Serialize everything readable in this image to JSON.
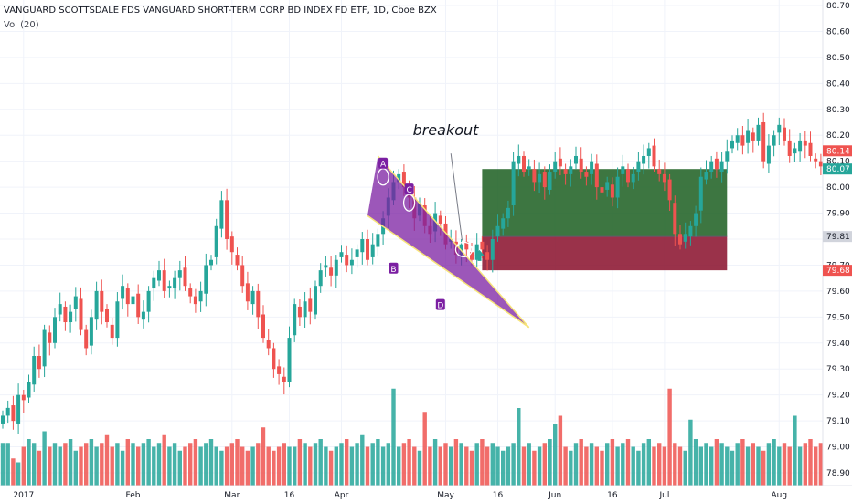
{
  "header": {
    "title": "VANGUARD SCOTTSDALE FDS VANGUARD SHORT-TERM CORP BD INDEX FD ETF, 1D, Cboe BZX",
    "volume_label": "Vol (20)"
  },
  "chart_data": {
    "type": "candlestick",
    "y_ticks": [
      "80.70",
      "80.60",
      "80.50",
      "80.40",
      "80.30",
      "80.20",
      "80.10",
      "80.00",
      "79.90",
      "79.80",
      "79.70",
      "79.60",
      "79.50",
      "79.40",
      "79.30",
      "79.20",
      "79.10",
      "79.00",
      "78.90"
    ],
    "ylim": [
      78.86,
      80.71
    ],
    "x_labels": [
      {
        "label": "2017",
        "bar": 4
      },
      {
        "label": "Feb",
        "bar": 25
      },
      {
        "label": "Mar",
        "bar": 44
      },
      {
        "label": "16",
        "bar": 55
      },
      {
        "label": "Apr",
        "bar": 65
      },
      {
        "label": "May",
        "bar": 85
      },
      {
        "label": "16",
        "bar": 95
      },
      {
        "label": "Jun",
        "bar": 106
      },
      {
        "label": "16",
        "bar": 117
      },
      {
        "label": "Jul",
        "bar": 127
      },
      {
        "label": "Aug",
        "bar": 149
      }
    ],
    "n_bars": 158,
    "closes": [
      79.12,
      79.15,
      79.1,
      79.2,
      79.18,
      79.25,
      79.35,
      79.3,
      79.45,
      79.4,
      79.5,
      79.55,
      79.48,
      79.52,
      79.58,
      79.45,
      79.38,
      79.5,
      79.6,
      79.52,
      79.48,
      79.42,
      79.56,
      79.62,
      79.55,
      79.58,
      79.5,
      79.52,
      79.6,
      79.65,
      79.68,
      79.6,
      79.62,
      79.65,
      79.68,
      79.62,
      79.58,
      79.55,
      79.6,
      79.7,
      79.72,
      79.85,
      79.95,
      79.8,
      79.75,
      79.7,
      79.62,
      79.56,
      79.6,
      79.5,
      79.42,
      79.38,
      79.3,
      79.28,
      79.25,
      79.42,
      79.55,
      79.5,
      79.56,
      79.52,
      79.62,
      79.68,
      79.7,
      79.66,
      79.72,
      79.75,
      79.7,
      79.72,
      79.76,
      79.8,
      79.72,
      79.78,
      79.82,
      79.88,
      79.96,
      80.02,
      80.05,
      80.0,
      79.96,
      79.88,
      79.94,
      79.85,
      79.82,
      79.9,
      79.86,
      79.78,
      79.8,
      79.74,
      79.78,
      79.76,
      79.72,
      79.78,
      79.76,
      79.72,
      79.8,
      79.85,
      79.88,
      79.92,
      80.1,
      80.12,
      80.06,
      80.08,
      80.02,
      80.05,
      80.0,
      80.06,
      80.1,
      80.08,
      80.05,
      80.08,
      80.12,
      80.06,
      80.04,
      80.1,
      80.0,
      79.98,
      80.02,
      79.96,
      80.04,
      80.08,
      80.02,
      80.05,
      80.1,
      80.12,
      80.15,
      80.08,
      80.05,
      80.02,
      79.95,
      79.82,
      79.78,
      79.82,
      79.85,
      79.9,
      80.04,
      80.06,
      80.1,
      80.07,
      80.1,
      80.14,
      80.18,
      80.2,
      80.16,
      80.22,
      80.18,
      80.24,
      80.1,
      80.16,
      80.2,
      80.24,
      80.18,
      80.12,
      80.15,
      80.18,
      80.16,
      80.12,
      80.1,
      80.08,
      80.12,
      80.14
    ],
    "volumes": [
      0.55,
      0.55,
      0.35,
      0.3,
      0.5,
      0.6,
      0.55,
      0.45,
      0.7,
      0.5,
      0.55,
      0.5,
      0.55,
      0.6,
      0.45,
      0.5,
      0.55,
      0.6,
      0.5,
      0.55,
      0.65,
      0.5,
      0.55,
      0.45,
      0.6,
      0.55,
      0.5,
      0.55,
      0.6,
      0.5,
      0.55,
      0.65,
      0.5,
      0.55,
      0.45,
      0.5,
      0.55,
      0.6,
      0.5,
      0.55,
      0.6,
      0.5,
      0.45,
      0.5,
      0.55,
      0.6,
      0.5,
      0.45,
      0.5,
      0.55,
      0.45,
      0.5,
      0.45,
      0.5,
      0.55,
      0.5,
      0.5,
      0.6,
      0.55,
      0.5,
      0.55,
      0.6,
      0.5,
      0.45,
      0.5,
      0.55,
      0.6,
      0.5,
      0.55,
      0.65,
      0.5,
      0.55,
      0.6,
      0.5,
      0.55,
      0.45,
      0.5,
      0.55,
      0.6,
      0.5,
      0.45,
      0.55,
      0.5,
      0.6,
      0.5,
      0.55,
      0.5,
      0.6,
      0.55,
      0.5,
      0.45,
      0.55,
      0.6,
      0.5,
      0.55,
      0.5,
      0.45,
      0.5,
      0.55,
      0.6,
      0.5,
      0.55,
      0.45,
      0.5,
      0.55,
      0.6,
      0.5,
      0.55,
      0.5,
      0.45,
      0.55,
      0.6,
      0.5,
      0.55,
      0.5,
      0.45,
      0.55,
      0.6,
      0.5,
      0.55,
      0.6,
      0.5,
      0.45,
      0.55,
      0.6,
      0.5,
      0.55,
      0.5,
      0.6,
      0.55,
      0.5,
      0.45,
      0.55,
      0.6,
      0.5,
      0.55,
      0.5,
      0.6,
      0.55,
      0.5,
      0.45,
      0.55,
      0.6,
      0.5,
      0.55,
      0.5,
      0.45,
      0.55,
      0.6,
      0.5,
      0.55,
      0.5,
      0.45,
      0.5,
      0.55,
      0.6,
      0.5,
      0.55,
      0.5,
      0.6,
      0.55,
      0.5
    ],
    "volume_spikes": {
      "75": 1.25,
      "81": 0.95,
      "106": 0.8,
      "107": 0.9,
      "99": 1.0,
      "128": 1.25,
      "50": 0.75,
      "132": 0.85,
      "152": 0.9
    },
    "price_tags": [
      {
        "value": "80.70",
        "color": "#ffffff",
        "text_color": "#131722",
        "top": true
      },
      {
        "value": "80.14",
        "color": "#ef5350",
        "text_color": "#ffffff",
        "price": 80.14
      },
      {
        "value": "80.07",
        "color": "#26a69a",
        "text_color": "#ffffff",
        "price": 80.07
      },
      {
        "value": "79.81",
        "color": "#d1d4dc",
        "text_color": "#131722",
        "price": 79.81
      },
      {
        "value": "79.68",
        "color": "#ef5350",
        "text_color": "#ffffff",
        "price": 79.68
      }
    ],
    "colors": {
      "up": "#26a69a",
      "down": "#ef5350",
      "pattern": "#7b1fa2",
      "trendline": "#f7e479",
      "target": "#1b5e20",
      "stop": "#880e2a",
      "accent": "#2962ff"
    },
    "pattern": {
      "name": "descending wedge",
      "annotation": "breakout",
      "points": [
        {
          "label": "A",
          "bar": 73,
          "price": 80.04
        },
        {
          "label": "B",
          "bar": 75,
          "price": 79.72
        },
        {
          "label": "C",
          "bar": 78,
          "price": 79.94
        },
        {
          "label": "D",
          "bar": 84,
          "price": 79.58
        }
      ],
      "upper_line": [
        {
          "bar": 72,
          "price": 80.12
        },
        {
          "bar": 101,
          "price": 79.46
        }
      ],
      "lower_line": [
        {
          "bar": 70,
          "price": 79.89
        },
        {
          "bar": 101,
          "price": 79.46
        }
      ],
      "entry": 79.81,
      "target": 80.07,
      "stop": 79.68,
      "position_from_bar": 92,
      "position_to_bar": 139
    }
  }
}
